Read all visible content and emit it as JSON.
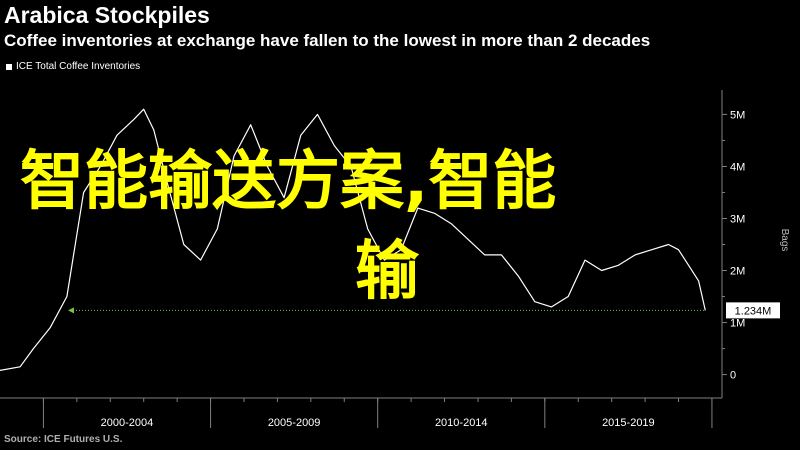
{
  "header": {
    "title": "Arabica Stockpiles",
    "subtitle": "Coffee inventories at exchange have fallen to the lowest in more than 2 decades"
  },
  "footer": {
    "source": "Source: ICE Futures U.S."
  },
  "watermark": {
    "line1": "智能输送方案,智能",
    "line2": "输"
  },
  "colors": {
    "background": "#000000",
    "series": "#ffffff",
    "reference_line": "#7cc242",
    "overlay_text": "#ffff00",
    "axis": "#808080"
  },
  "chart_data": {
    "type": "line",
    "title": "Arabica Stockpiles",
    "subtitle": "Coffee inventories at exchange have fallen to the lowest in more than 2 decades",
    "ylabel": "Bags",
    "ylim": [
      -0.45,
      5.7
    ],
    "y_ticks": [
      0,
      1,
      2,
      3,
      4,
      5
    ],
    "y_tick_labels": [
      "0",
      "1M",
      "2M",
      "3M",
      "4M",
      "5M"
    ],
    "x_groups": [
      "2000-2004",
      "2005-2009",
      "2010-2014",
      "2015-2019"
    ],
    "legend_position": "top-left",
    "grid": false,
    "last_value_label": "1.234M",
    "reference_value": 1.234,
    "series": [
      {
        "name": "ICE Total Coffee Inventories",
        "x": [
          1998.0,
          1998.6,
          1999.0,
          1999.5,
          2000.0,
          2000.5,
          2001.0,
          2001.5,
          2002.0,
          2002.3,
          2002.6,
          2003.0,
          2003.5,
          2004.0,
          2004.5,
          2005.0,
          2005.5,
          2006.0,
          2006.5,
          2007.0,
          2007.5,
          2008.0,
          2008.5,
          2009.0,
          2009.5,
          2010.0,
          2010.5,
          2011.0,
          2011.5,
          2012.0,
          2012.5,
          2013.0,
          2013.5,
          2014.0,
          2014.5,
          2015.0,
          2015.5,
          2016.0,
          2016.5,
          2017.0,
          2017.5,
          2018.0,
          2018.3,
          2018.6,
          2018.9,
          2019.1
        ],
        "values": [
          0.08,
          0.15,
          0.5,
          0.9,
          1.5,
          3.5,
          4.0,
          4.6,
          4.9,
          5.1,
          4.7,
          3.7,
          2.5,
          2.2,
          2.8,
          4.2,
          4.8,
          4.0,
          3.4,
          4.6,
          5.0,
          4.4,
          4.0,
          2.8,
          2.2,
          2.4,
          3.2,
          3.1,
          2.9,
          2.6,
          2.3,
          2.3,
          1.9,
          1.4,
          1.3,
          1.5,
          2.2,
          2.0,
          2.1,
          2.3,
          2.4,
          2.5,
          2.4,
          2.1,
          1.8,
          1.234
        ]
      }
    ]
  }
}
